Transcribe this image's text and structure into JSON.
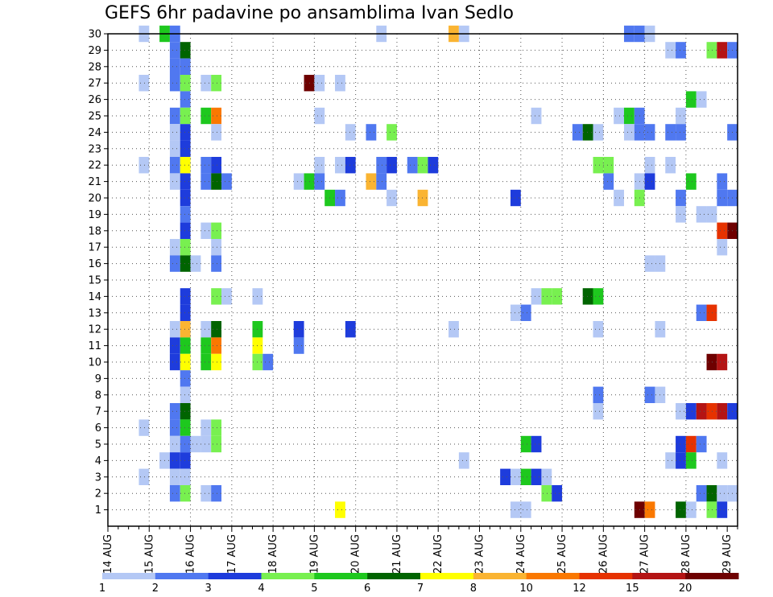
{
  "chart_data": {
    "type": "heatmap",
    "title": "GEFS 6hr padavine po ansamblima Ivan Sedlo",
    "xlabel": "",
    "ylabel": "",
    "x_ticks": [
      "14 AUG",
      "15 AUG",
      "16 AUG",
      "17 AUG",
      "18 AUG",
      "19 AUG",
      "20 AUG",
      "21 AUG",
      "22 AUG",
      "23 AUG",
      "24 AUG",
      "25 AUG",
      "26 AUG",
      "27 AUG",
      "28 AUG",
      "29 AUG"
    ],
    "y_ticks": [
      1,
      2,
      3,
      4,
      5,
      6,
      7,
      8,
      9,
      10,
      11,
      12,
      13,
      14,
      15,
      16,
      17,
      18,
      19,
      20,
      21,
      22,
      23,
      24,
      25,
      26,
      27,
      28,
      29,
      30
    ],
    "x_range": [
      0,
      61
    ],
    "y_range": [
      0,
      30
    ],
    "grid": true,
    "colorbar": {
      "labels": [
        "1",
        "2",
        "3",
        "4",
        "5",
        "6",
        "7",
        "8",
        "10",
        "12",
        "15",
        "20"
      ],
      "colors": [
        "#b4c8f5",
        "#5078f0",
        "#1e3cdc",
        "#78f050",
        "#1ec81e",
        "#006400",
        "#ffff00",
        "#fab432",
        "#fa7800",
        "#e63200",
        "#b41414",
        "#6e0000"
      ]
    },
    "cells": [
      [
        3.5,
        30,
        1
      ],
      [
        5.5,
        30,
        5
      ],
      [
        6.5,
        30,
        2
      ],
      [
        26.5,
        30,
        1
      ],
      [
        33.5,
        30,
        8
      ],
      [
        34.5,
        30,
        1
      ],
      [
        50.5,
        30,
        2
      ],
      [
        51.5,
        30,
        2
      ],
      [
        52.5,
        30,
        1
      ],
      [
        6.5,
        29,
        2
      ],
      [
        7.5,
        29,
        6
      ],
      [
        54.5,
        29,
        1
      ],
      [
        55.5,
        29,
        2
      ],
      [
        58.5,
        29,
        4
      ],
      [
        59.5,
        29,
        11
      ],
      [
        60.5,
        29,
        2
      ],
      [
        6.5,
        28,
        2
      ],
      [
        7.5,
        28,
        2
      ],
      [
        3.5,
        27,
        1
      ],
      [
        6.5,
        27,
        2
      ],
      [
        7.5,
        27,
        4
      ],
      [
        9.5,
        27,
        1
      ],
      [
        10.5,
        27,
        4
      ],
      [
        19.5,
        27,
        12
      ],
      [
        20.5,
        27,
        1
      ],
      [
        22.5,
        27,
        1
      ],
      [
        7.5,
        26,
        2
      ],
      [
        56.5,
        26,
        5
      ],
      [
        57.5,
        26,
        1
      ],
      [
        6.5,
        25,
        2
      ],
      [
        7.5,
        25,
        4
      ],
      [
        9.5,
        25,
        5
      ],
      [
        10.5,
        25,
        9
      ],
      [
        20.5,
        25,
        1
      ],
      [
        41.5,
        25,
        1
      ],
      [
        49.5,
        25,
        1
      ],
      [
        50.5,
        25,
        5
      ],
      [
        51.5,
        25,
        2
      ],
      [
        55.5,
        25,
        1
      ],
      [
        6.5,
        24,
        1
      ],
      [
        7.5,
        24,
        3
      ],
      [
        10.5,
        24,
        1
      ],
      [
        23.5,
        24,
        1
      ],
      [
        25.5,
        24,
        2
      ],
      [
        27.5,
        24,
        4
      ],
      [
        45.5,
        24,
        2
      ],
      [
        46.5,
        24,
        6
      ],
      [
        47.5,
        24,
        1
      ],
      [
        50.5,
        24,
        1
      ],
      [
        51.5,
        24,
        2
      ],
      [
        52.5,
        24,
        2
      ],
      [
        54.5,
        24,
        2
      ],
      [
        55.5,
        24,
        2
      ],
      [
        60.5,
        24,
        2
      ],
      [
        6.5,
        23,
        1
      ],
      [
        7.5,
        23,
        3
      ],
      [
        3.5,
        22,
        1
      ],
      [
        6.5,
        22,
        2
      ],
      [
        7.5,
        22,
        7
      ],
      [
        9.5,
        22,
        2
      ],
      [
        10.5,
        22,
        3
      ],
      [
        20.5,
        22,
        1
      ],
      [
        22.5,
        22,
        1
      ],
      [
        23.5,
        22,
        3
      ],
      [
        26.5,
        22,
        2
      ],
      [
        27.5,
        22,
        3
      ],
      [
        29.5,
        22,
        2
      ],
      [
        30.5,
        22,
        4
      ],
      [
        31.5,
        22,
        3
      ],
      [
        47.5,
        22,
        4
      ],
      [
        48.5,
        22,
        4
      ],
      [
        52.5,
        22,
        1
      ],
      [
        54.5,
        22,
        1
      ],
      [
        6.5,
        21,
        1
      ],
      [
        7.5,
        21,
        3
      ],
      [
        9.5,
        21,
        2
      ],
      [
        10.5,
        21,
        6
      ],
      [
        11.5,
        21,
        2
      ],
      [
        18.5,
        21,
        1
      ],
      [
        19.5,
        21,
        5
      ],
      [
        20.5,
        21,
        2
      ],
      [
        25.5,
        21,
        8
      ],
      [
        26.5,
        21,
        2
      ],
      [
        48.5,
        21,
        2
      ],
      [
        51.5,
        21,
        1
      ],
      [
        52.5,
        21,
        3
      ],
      [
        56.5,
        21,
        5
      ],
      [
        59.5,
        21,
        2
      ],
      [
        7.5,
        20,
        3
      ],
      [
        21.5,
        20,
        5
      ],
      [
        22.5,
        20,
        2
      ],
      [
        27.5,
        20,
        1
      ],
      [
        30.5,
        20,
        8
      ],
      [
        39.5,
        20,
        3
      ],
      [
        49.5,
        20,
        1
      ],
      [
        51.5,
        20,
        4
      ],
      [
        55.5,
        20,
        2
      ],
      [
        59.5,
        20,
        2
      ],
      [
        60.5,
        20,
        2
      ],
      [
        7.5,
        19,
        2
      ],
      [
        55.5,
        19,
        1
      ],
      [
        57.5,
        19,
        1
      ],
      [
        58.5,
        19,
        1
      ],
      [
        7.5,
        18,
        3
      ],
      [
        9.5,
        18,
        1
      ],
      [
        10.5,
        18,
        4
      ],
      [
        59.5,
        18,
        10
      ],
      [
        60.5,
        18,
        12
      ],
      [
        6.5,
        17,
        1
      ],
      [
        7.5,
        17,
        4
      ],
      [
        10.5,
        17,
        1
      ],
      [
        59.5,
        17,
        1
      ],
      [
        6.5,
        16,
        2
      ],
      [
        7.5,
        16,
        6
      ],
      [
        8.5,
        16,
        1
      ],
      [
        10.5,
        16,
        2
      ],
      [
        52.5,
        16,
        1
      ],
      [
        53.5,
        16,
        1
      ],
      [
        7.5,
        14,
        3
      ],
      [
        10.5,
        14,
        4
      ],
      [
        11.5,
        14,
        1
      ],
      [
        14.5,
        14,
        1
      ],
      [
        41.5,
        14,
        1
      ],
      [
        42.5,
        14,
        4
      ],
      [
        43.5,
        14,
        4
      ],
      [
        46.5,
        14,
        6
      ],
      [
        47.5,
        14,
        5
      ],
      [
        7.5,
        13,
        3
      ],
      [
        39.5,
        13,
        1
      ],
      [
        40.5,
        13,
        2
      ],
      [
        57.5,
        13,
        2
      ],
      [
        58.5,
        13,
        10
      ],
      [
        6.5,
        12,
        1
      ],
      [
        7.5,
        12,
        8
      ],
      [
        9.5,
        12,
        1
      ],
      [
        10.5,
        12,
        6
      ],
      [
        14.5,
        12,
        5
      ],
      [
        18.5,
        12,
        3
      ],
      [
        23.5,
        12,
        3
      ],
      [
        33.5,
        12,
        1
      ],
      [
        47.5,
        12,
        1
      ],
      [
        53.5,
        12,
        1
      ],
      [
        6.5,
        11,
        3
      ],
      [
        7.5,
        11,
        5
      ],
      [
        9.5,
        11,
        5
      ],
      [
        10.5,
        11,
        9
      ],
      [
        14.5,
        11,
        7
      ],
      [
        18.5,
        11,
        2
      ],
      [
        6.5,
        10,
        3
      ],
      [
        7.5,
        10,
        7
      ],
      [
        9.5,
        10,
        5
      ],
      [
        10.5,
        10,
        7
      ],
      [
        14.5,
        10,
        4
      ],
      [
        15.5,
        10,
        2
      ],
      [
        58.5,
        10,
        12
      ],
      [
        59.5,
        10,
        11
      ],
      [
        7.5,
        9,
        2
      ],
      [
        7.5,
        8,
        1
      ],
      [
        47.5,
        8,
        2
      ],
      [
        52.5,
        8,
        2
      ],
      [
        53.5,
        8,
        1
      ],
      [
        6.5,
        7,
        2
      ],
      [
        7.5,
        7,
        6
      ],
      [
        47.5,
        7,
        1
      ],
      [
        55.5,
        7,
        1
      ],
      [
        56.5,
        7,
        3
      ],
      [
        57.5,
        7,
        11
      ],
      [
        58.5,
        7,
        10
      ],
      [
        59.5,
        7,
        11
      ],
      [
        60.5,
        7,
        3
      ],
      [
        3.5,
        6,
        1
      ],
      [
        6.5,
        6,
        2
      ],
      [
        7.5,
        6,
        5
      ],
      [
        9.5,
        6,
        1
      ],
      [
        10.5,
        6,
        4
      ],
      [
        6.5,
        5,
        1
      ],
      [
        7.5,
        5,
        2
      ],
      [
        8.5,
        5,
        1
      ],
      [
        9.5,
        5,
        1
      ],
      [
        10.5,
        5,
        4
      ],
      [
        40.5,
        5,
        5
      ],
      [
        41.5,
        5,
        3
      ],
      [
        55.5,
        5,
        3
      ],
      [
        56.5,
        5,
        10
      ],
      [
        57.5,
        5,
        2
      ],
      [
        5.5,
        4,
        1
      ],
      [
        6.5,
        4,
        3
      ],
      [
        7.5,
        4,
        3
      ],
      [
        34.5,
        4,
        1
      ],
      [
        54.5,
        4,
        1
      ],
      [
        55.5,
        4,
        3
      ],
      [
        56.5,
        4,
        5
      ],
      [
        59.5,
        4,
        1
      ],
      [
        3.5,
        3,
        1
      ],
      [
        6.5,
        3,
        1
      ],
      [
        7.5,
        3,
        1
      ],
      [
        38.5,
        3,
        3
      ],
      [
        39.5,
        3,
        1
      ],
      [
        40.5,
        3,
        5
      ],
      [
        41.5,
        3,
        3
      ],
      [
        42.5,
        3,
        1
      ],
      [
        6.5,
        2,
        2
      ],
      [
        7.5,
        2,
        4
      ],
      [
        9.5,
        2,
        1
      ],
      [
        10.5,
        2,
        2
      ],
      [
        42.5,
        2,
        4
      ],
      [
        43.5,
        2,
        3
      ],
      [
        57.5,
        2,
        2
      ],
      [
        58.5,
        2,
        6
      ],
      [
        59.5,
        2,
        1
      ],
      [
        60.5,
        2,
        1
      ],
      [
        22.5,
        1,
        7
      ],
      [
        39.5,
        1,
        1
      ],
      [
        40.5,
        1,
        1
      ],
      [
        51.5,
        1,
        12
      ],
      [
        52.5,
        1,
        9
      ],
      [
        55.5,
        1,
        6
      ],
      [
        56.5,
        1,
        1
      ],
      [
        58.5,
        1,
        4
      ],
      [
        59.5,
        1,
        3
      ]
    ]
  }
}
